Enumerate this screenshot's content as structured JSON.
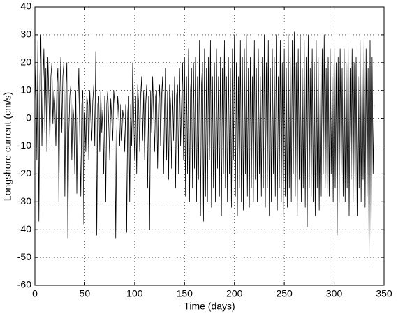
{
  "chart_data": {
    "type": "line",
    "xlabel": "Time (days)",
    "ylabel": "Longshore current (cm/s)",
    "xlim": [
      0,
      350
    ],
    "xticks": [
      0,
      50,
      100,
      150,
      200,
      250,
      300,
      350
    ],
    "ylim": [
      -60,
      40
    ],
    "yticks": [
      -60,
      -50,
      -40,
      -30,
      -20,
      -10,
      0,
      10,
      20,
      30,
      40
    ],
    "grid": true,
    "x": [
      0,
      1,
      2,
      3,
      4,
      5,
      6,
      7,
      8,
      9,
      10,
      11,
      12,
      13,
      14,
      15,
      16,
      17,
      18,
      19,
      20,
      21,
      22,
      23,
      24,
      25,
      26,
      27,
      28,
      29,
      30,
      31,
      32,
      33,
      34,
      35,
      36,
      37,
      38,
      39,
      40,
      41,
      42,
      43,
      44,
      45,
      46,
      47,
      48,
      49,
      50,
      51,
      52,
      53,
      54,
      55,
      56,
      57,
      58,
      59,
      60,
      61,
      62,
      63,
      64,
      65,
      66,
      67,
      68,
      69,
      70,
      71,
      72,
      73,
      74,
      75,
      76,
      77,
      78,
      79,
      80,
      81,
      82,
      83,
      84,
      85,
      86,
      87,
      88,
      89,
      90,
      91,
      92,
      93,
      94,
      95,
      96,
      97,
      98,
      99,
      100,
      101,
      102,
      103,
      104,
      105,
      106,
      107,
      108,
      109,
      110,
      111,
      112,
      113,
      114,
      115,
      116,
      117,
      118,
      119,
      120,
      121,
      122,
      123,
      124,
      125,
      126,
      127,
      128,
      129,
      130,
      131,
      132,
      133,
      134,
      135,
      136,
      137,
      138,
      139,
      140,
      141,
      142,
      143,
      144,
      145,
      146,
      147,
      148,
      149,
      150,
      151,
      152,
      153,
      154,
      155,
      156,
      157,
      158,
      159,
      160,
      161,
      162,
      163,
      164,
      165,
      166,
      167,
      168,
      169,
      170,
      171,
      172,
      173,
      174,
      175,
      176,
      177,
      178,
      179,
      180,
      181,
      182,
      183,
      184,
      185,
      186,
      187,
      188,
      189,
      190,
      191,
      192,
      193,
      194,
      195,
      196,
      197,
      198,
      199,
      200,
      201,
      202,
      203,
      204,
      205,
      206,
      207,
      208,
      209,
      210,
      211,
      212,
      213,
      214,
      215,
      216,
      217,
      218,
      219,
      220,
      221,
      222,
      223,
      224,
      225,
      226,
      227,
      228,
      229,
      230,
      231,
      232,
      233,
      234,
      235,
      236,
      237,
      238,
      239,
      240,
      241,
      242,
      243,
      244,
      245,
      246,
      247,
      248,
      249,
      250,
      251,
      252,
      253,
      254,
      255,
      256,
      257,
      258,
      259,
      260,
      261,
      262,
      263,
      264,
      265,
      266,
      267,
      268,
      269,
      270,
      271,
      272,
      273,
      274,
      275,
      276,
      277,
      278,
      279,
      280,
      281,
      282,
      283,
      284,
      285,
      286,
      287,
      288,
      289,
      290,
      291,
      292,
      293,
      294,
      295,
      296,
      297,
      298,
      299,
      300,
      301,
      302,
      303,
      304,
      305,
      306,
      307,
      308,
      309,
      310,
      311,
      312,
      313,
      314,
      315,
      316,
      317,
      318,
      319,
      320,
      321,
      322,
      323,
      324,
      325,
      326,
      327,
      328,
      329,
      330,
      331,
      332,
      333,
      334,
      335,
      336,
      337,
      338,
      339,
      340
    ],
    "series": [
      {
        "color": "#000000",
        "values": [
          5,
          20,
          -15,
          28,
          -37,
          15,
          30,
          -10,
          12,
          25,
          -5,
          18,
          -12,
          22,
          8,
          -8,
          15,
          20,
          -2,
          10,
          5,
          -10,
          12,
          18,
          -30,
          8,
          22,
          -5,
          15,
          20,
          -28,
          10,
          20,
          -43,
          -5,
          8,
          12,
          -15,
          5,
          0,
          -20,
          10,
          -27,
          3,
          18,
          -8,
          -28,
          5,
          10,
          -38,
          2,
          -12,
          8,
          5,
          -15,
          10,
          0,
          -8,
          6,
          12,
          -10,
          24,
          -42,
          5,
          8,
          -12,
          10,
          -5,
          3,
          -20,
          8,
          -30,
          5,
          10,
          -2,
          -15,
          7,
          0,
          -8,
          10,
          5,
          -43,
          -5,
          8,
          2,
          -10,
          5,
          -8,
          3,
          0,
          -12,
          5,
          -41,
          2,
          8,
          -30,
          5,
          -10,
          20,
          2,
          -15,
          8,
          -20,
          12,
          5,
          -12,
          8,
          15,
          -8,
          10,
          -15,
          5,
          12,
          -25,
          8,
          -40,
          10,
          -5,
          15,
          2,
          -12,
          8,
          10,
          -18,
          5,
          12,
          -10,
          8,
          15,
          -20,
          5,
          18,
          -15,
          10,
          -22,
          12,
          5,
          -18,
          10,
          -8,
          15,
          -25,
          8,
          12,
          -20,
          18,
          -10,
          5,
          20,
          -15,
          22,
          -28,
          15,
          -20,
          25,
          -30,
          10,
          18,
          -25,
          20,
          -18,
          22,
          -30,
          15,
          -22,
          28,
          -35,
          12,
          20,
          -37,
          25,
          -28,
          18,
          -30,
          22,
          -15,
          28,
          -32,
          15,
          -25,
          20,
          -30,
          25,
          -18,
          15,
          -28,
          22,
          -35,
          18,
          -20,
          28,
          -25,
          15,
          -30,
          22,
          -20,
          18,
          -32,
          25,
          -15,
          30,
          -28,
          20,
          -35,
          15,
          -25,
          28,
          -30,
          22,
          -33,
          25,
          -20,
          30,
          -28,
          18,
          -32,
          22,
          -25,
          15,
          -30,
          28,
          -22,
          18,
          -30,
          25,
          -20,
          15,
          -28,
          22,
          -25,
          30,
          -32,
          20,
          -25,
          28,
          -35,
          18,
          -30,
          25,
          -20,
          22,
          -28,
          30,
          -33,
          15,
          -25,
          28,
          -30,
          20,
          -35,
          25,
          -28,
          18,
          -32,
          30,
          -25,
          22,
          -30,
          28,
          -20,
          31,
          -28,
          20,
          -35,
          25,
          -22,
          30,
          -30,
          18,
          -25,
          28,
          -32,
          22,
          -39,
          30,
          -25,
          18,
          -28,
          25,
          -30,
          20,
          -35,
          28,
          -25,
          22,
          -33,
          15,
          -28,
          25,
          -20,
          30,
          -25,
          18,
          -30,
          22,
          -28,
          25,
          -20,
          15,
          -30,
          28,
          -25,
          20,
          -42,
          22,
          -30,
          25,
          -22,
          18,
          -28,
          25,
          -30,
          20,
          -25,
          28,
          -35,
          18,
          -22,
          25,
          -30,
          20,
          -28,
          22,
          -35,
          15,
          -25,
          28,
          -30,
          20,
          -22,
          30,
          -32,
          25,
          -28,
          18,
          -52,
          28,
          -45,
          22,
          -20,
          5
        ]
      }
    ]
  }
}
